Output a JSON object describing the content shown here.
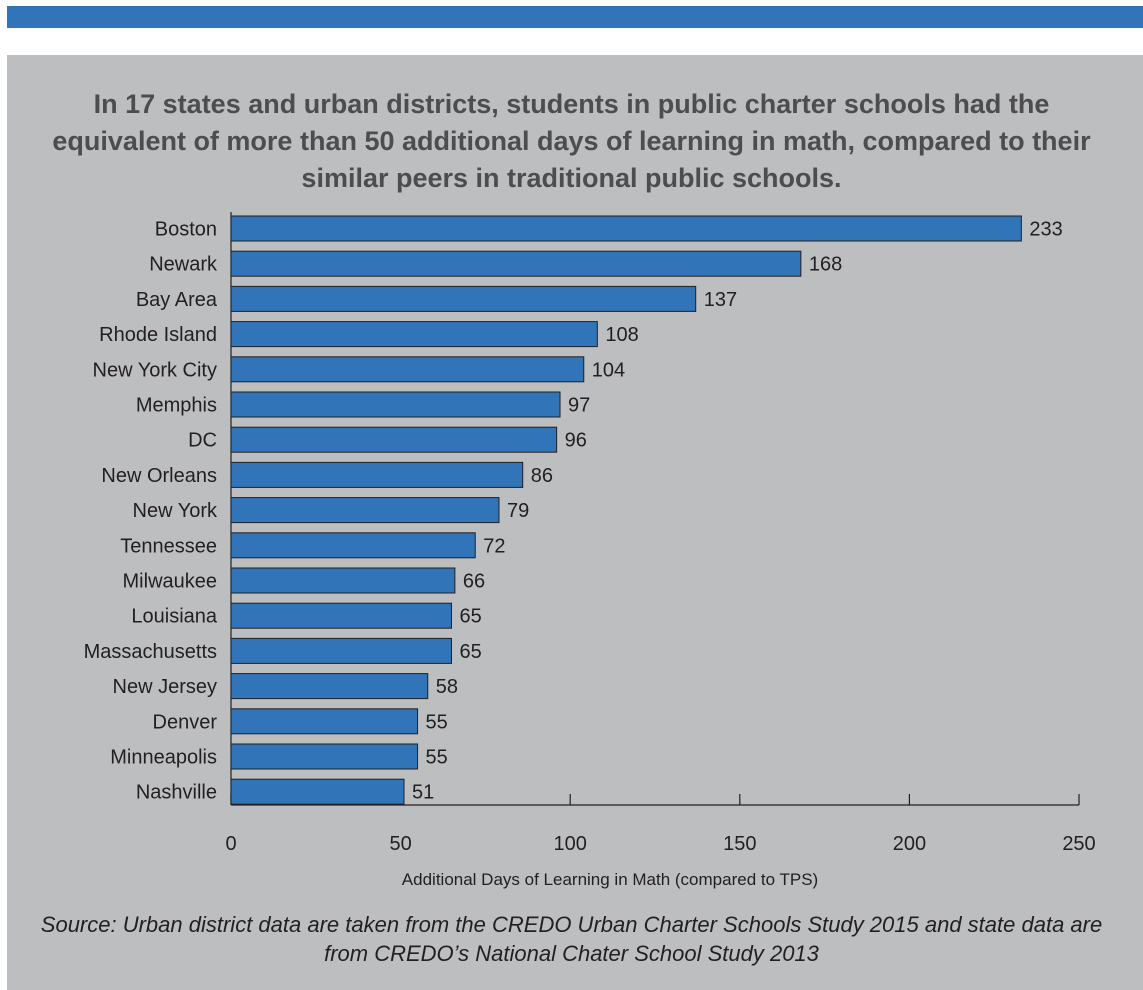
{
  "chart_data": {
    "type": "bar",
    "orientation": "horizontal",
    "title": "In 17 states and urban districts, students in public charter schools had the equivalent of more than 50 additional days of learning in math, compared to their similar peers in traditional public schools.",
    "categories": [
      "Boston",
      "Newark",
      "Bay Area",
      "Rhode Island",
      "New York City",
      "Memphis",
      "DC",
      "New Orleans",
      "New York",
      "Tennessee",
      "Milwaukee",
      "Louisiana",
      "Massachusetts",
      "New Jersey",
      "Denver",
      "Minneapolis",
      "Nashville"
    ],
    "values": [
      233,
      168,
      137,
      108,
      104,
      97,
      96,
      86,
      79,
      72,
      66,
      65,
      65,
      58,
      55,
      55,
      51
    ],
    "xlabel": "Additional Days of Learning in Math (compared to TPS)",
    "xlim": [
      0,
      250
    ],
    "xticks": [
      0,
      50,
      100,
      150,
      200,
      250
    ],
    "grid": false,
    "bar_color": "#3174b8",
    "bar_border_color": "#231f20"
  },
  "source": "Source: Urban district data are taken from the CREDO Urban Charter Schools Study 2015 and state data are from CREDO’s National Chater School Study 2013",
  "colors": {
    "header_bar": "#3174b8",
    "panel_background": "#bcbec0",
    "title_text": "#4d4d4f"
  }
}
